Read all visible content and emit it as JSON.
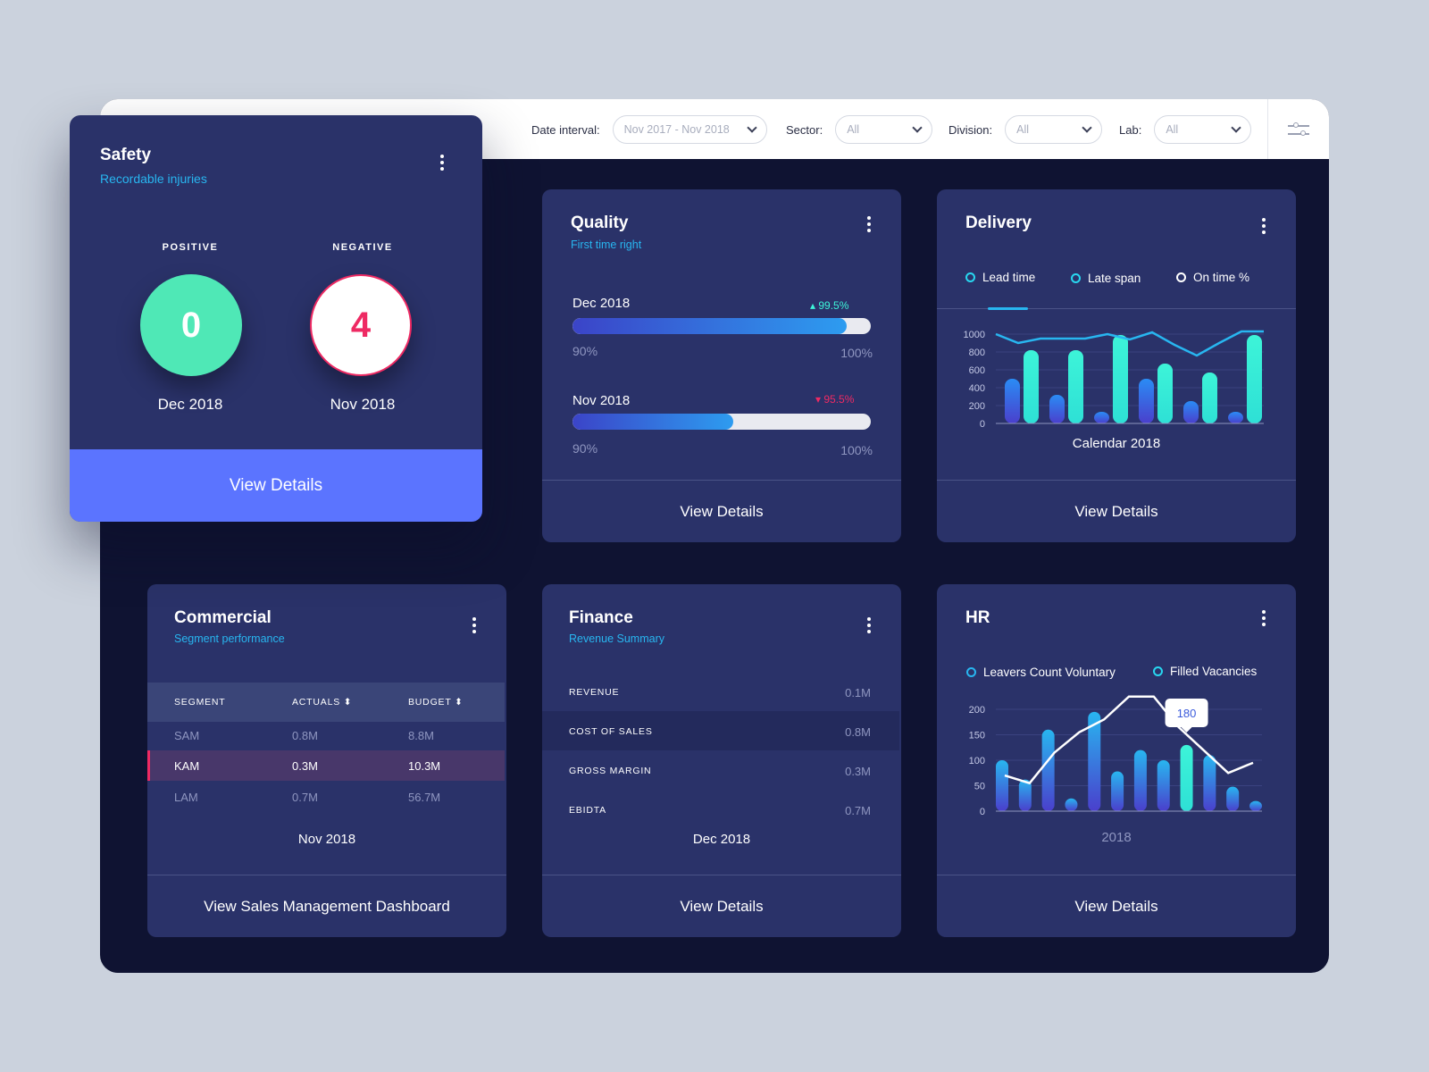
{
  "filters": [
    {
      "label": "Date interval:",
      "value": "Nov 2017 - Nov 2018"
    },
    {
      "label": "Sector:",
      "value": "All"
    },
    {
      "label": "Division:",
      "value": "All"
    },
    {
      "label": "Lab:",
      "value": "All"
    }
  ],
  "safety": {
    "title": "Safety",
    "subtitle": "Recordable injuries",
    "positive": {
      "label": "POSITIVE",
      "value": "0",
      "date": "Dec 2018"
    },
    "negative": {
      "label": "NEGATIVE",
      "value": "4",
      "date": "Nov 2018"
    },
    "footer": "View Details"
  },
  "quality": {
    "title": "Quality",
    "subtitle": "First time right",
    "rows": [
      {
        "label": "Dec 2018",
        "pct": "99.5%",
        "trend": "up",
        "fill": 0.92,
        "min": "90%",
        "max": "100%"
      },
      {
        "label": "Nov 2018",
        "pct": "95.5%",
        "trend": "down",
        "fill": 0.54,
        "min": "90%",
        "max": "100%"
      }
    ],
    "footer": "View Details"
  },
  "delivery": {
    "title": "Delivery",
    "legend": [
      "Lead time",
      "Late span",
      "On time %"
    ],
    "caption": "Calendar 2018",
    "footer": "View Details",
    "chart_data": {
      "type": "bar",
      "ylim": [
        0,
        1000
      ],
      "yticks": [
        0,
        200,
        400,
        600,
        800,
        1000
      ],
      "series": [
        {
          "name": "Lead time",
          "values": [
            500,
            320,
            130,
            500,
            250,
            130
          ]
        },
        {
          "name": "Late span",
          "values": [
            820,
            820,
            990,
            670,
            570,
            990
          ]
        },
        {
          "name": "On time %",
          "x": [
            0,
            1,
            2,
            3,
            4,
            5,
            6,
            7,
            8,
            9,
            10,
            11,
            12
          ],
          "values": [
            1000,
            900,
            950,
            950,
            950,
            1000,
            940,
            1020,
            880,
            760,
            900,
            1030,
            1030
          ]
        }
      ],
      "xlabel": "Calendar 2018"
    }
  },
  "commercial": {
    "title": "Commercial",
    "subtitle": "Segment performance",
    "headers": [
      "SEGMENT",
      "ACTUALS ⬍",
      "BUDGET ⬍"
    ],
    "rows": [
      [
        "SAM",
        "0.8M",
        "8.8M"
      ],
      [
        "KAM",
        "0.3M",
        "10.3M"
      ],
      [
        "LAM",
        "0.7M",
        "56.7M"
      ]
    ],
    "caption": "Nov 2018",
    "footer": "View Sales Management Dashboard"
  },
  "finance": {
    "title": "Finance",
    "subtitle": "Revenue Summary",
    "rows": [
      {
        "label": "REVENUE",
        "value": "0.1M"
      },
      {
        "label": "COST OF SALES",
        "value": "0.8M"
      },
      {
        "label": "GROSS MARGIN",
        "value": "0.3M"
      },
      {
        "label": "EBIDTA",
        "value": "0.7M"
      }
    ],
    "caption": "Dec 2018",
    "footer": "View Details"
  },
  "hr": {
    "title": "HR",
    "legend": [
      "Leavers Count Voluntary",
      "Filled Vacancies"
    ],
    "caption": "2018",
    "footer": "View Details",
    "tooltip": "180",
    "chart_data": {
      "type": "bar",
      "ylim": [
        0,
        200
      ],
      "yticks": [
        0,
        50,
        100,
        150,
        200
      ],
      "xlabel": "2018",
      "series": [
        {
          "name": "Leavers Count Voluntary",
          "values": [
            100,
            62,
            160,
            25,
            195,
            78,
            120,
            100,
            130,
            110,
            48,
            20
          ]
        },
        {
          "name": "Filled Vacancies",
          "values": [
            70,
            55,
            115,
            155,
            180,
            225,
            225,
            165,
            120,
            75,
            95
          ]
        }
      ],
      "highlight_index": 8
    }
  },
  "colors": {
    "accent": "#5b74ff",
    "teal": "#3df4d8",
    "blue": "#28b6f0",
    "red": "#ee2a63",
    "green": "#4fe8b6"
  }
}
